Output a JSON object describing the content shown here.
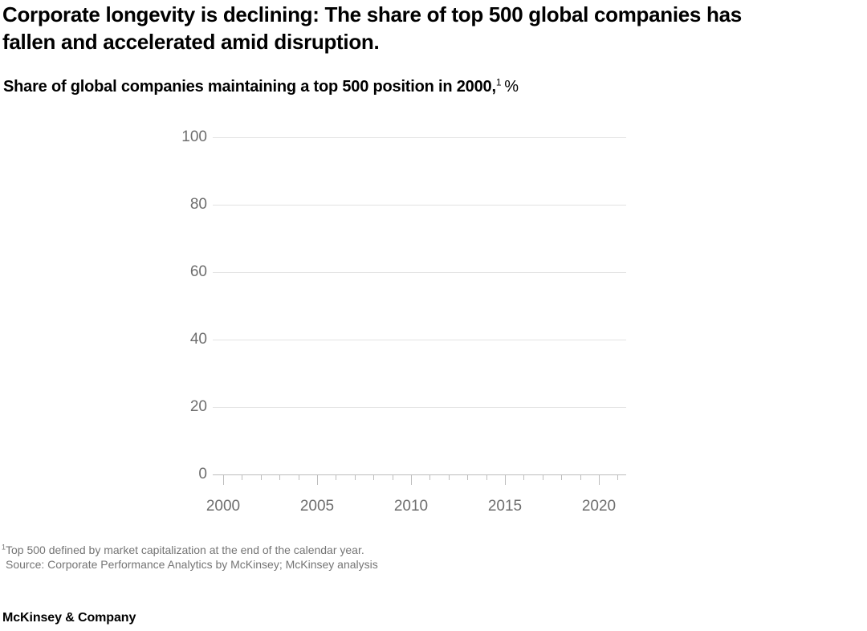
{
  "header": {
    "title_line1": "Corporate longevity is declining: The share of top 500 global companies has",
    "title_line2": "fallen and accelerated amid disruption.",
    "subtitle_text": "Share of global companies maintaining a top 500 position in 2000,",
    "subtitle_superscript": "1",
    "subtitle_unit": "%"
  },
  "chart_data": {
    "type": "line",
    "title": "Share of global companies maintaining a top 500 position in 2000, %",
    "ylabel": "%",
    "y_axis": {
      "min": 0,
      "max": 100,
      "tick_interval": 20,
      "tick_labels": [
        "100",
        "80",
        "60",
        "40",
        "20",
        "0"
      ]
    },
    "x_axis": {
      "start_year": 2000,
      "end_year": 2021,
      "minor_tick_interval": 1,
      "major_tick_interval": 5,
      "major_tick_labels": [
        "2000",
        "2005",
        "2010",
        "2015",
        "2020"
      ]
    },
    "series": [],
    "plot_state": "empty - no data line rendered in plot area",
    "grid": "horizontal"
  },
  "footnote": {
    "superscript": "1",
    "text": "Top 500 defined by market capitalization at the end of the calendar year."
  },
  "source": "Source: Corporate Performance Analytics by McKinsey; McKinsey analysis",
  "footer": {
    "logo": "McKinsey & Company"
  },
  "colors": {
    "text": "#000000",
    "axis_label": "#6e6e6e",
    "footnote_text": "#757575",
    "gridline": "#e3e3e3",
    "axis_line": "#bdbdbd"
  }
}
